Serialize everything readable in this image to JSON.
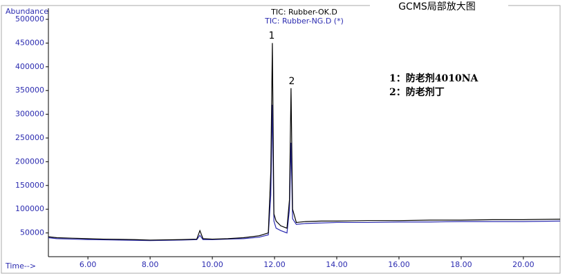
{
  "chart_data": {
    "type": "line",
    "title": "GCMS局部放大图",
    "y_label": "Abundance",
    "x_label": "Time-->",
    "annotations": [
      "1",
      "2",
      "1：防老剂4010NA",
      "2：防老剂丁"
    ],
    "x": [
      4.73,
      5,
      5.5,
      6,
      6.5,
      7,
      7.5,
      8,
      8.5,
      9,
      9.5,
      9.6,
      9.7,
      10,
      10.5,
      11,
      11.5,
      11.8,
      11.88,
      11.93,
      11.98,
      12.05,
      12.2,
      12.4,
      12.48,
      12.53,
      12.58,
      12.7,
      13,
      13.5,
      14,
      15,
      16,
      17,
      18,
      19,
      20,
      21.18
    ],
    "series": [
      {
        "name": "TIC: Rubber-OK.D",
        "color": "#000000",
        "values": [
          42000,
          40000,
          39000,
          38000,
          37000,
          36500,
          36000,
          35000,
          35500,
          36000,
          37000,
          55000,
          38000,
          37000,
          38000,
          40000,
          44000,
          50000,
          180000,
          450000,
          90000,
          75000,
          65000,
          60000,
          120000,
          355000,
          100000,
          72000,
          74000,
          75000,
          75000,
          76000,
          76000,
          77000,
          77000,
          78000,
          78000,
          79000
        ]
      },
      {
        "name": "TIC: Rubber-NG.D (*)",
        "color": "#2b2bb0",
        "values": [
          40000,
          38000,
          37000,
          36000,
          35500,
          35000,
          34500,
          34000,
          34500,
          35000,
          36000,
          45000,
          36000,
          36000,
          37000,
          38000,
          41000,
          46000,
          130000,
          320000,
          75000,
          60000,
          55000,
          50000,
          100000,
          240000,
          80000,
          68000,
          70000,
          71000,
          72000,
          72000,
          73000,
          73000,
          74000,
          74000,
          74000,
          75000
        ]
      }
    ],
    "xlim": [
      4.73,
      21.18
    ],
    "ylim": [
      0,
      500000
    ],
    "xticks": [
      {
        "value": 6,
        "label": "6.00"
      },
      {
        "value": 8,
        "label": "8.00"
      },
      {
        "value": 10,
        "label": "10.00"
      },
      {
        "value": 12,
        "label": "12.00"
      },
      {
        "value": 14,
        "label": "14.00"
      },
      {
        "value": 16,
        "label": "16.00"
      },
      {
        "value": 18,
        "label": "18.00"
      },
      {
        "value": 20,
        "label": "20.00"
      }
    ],
    "yticks": [
      50000,
      100000,
      150000,
      200000,
      250000,
      300000,
      350000,
      400000,
      450000,
      500000
    ]
  }
}
